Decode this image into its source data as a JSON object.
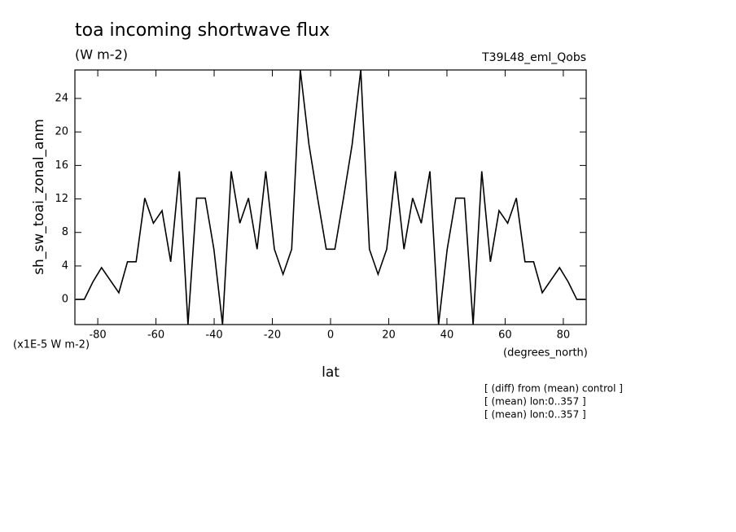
{
  "chart_data": {
    "type": "line",
    "title": "toa incoming shortwave flux",
    "subtitle": "(W m-2)",
    "dataset": "T39L48_eml_Qobs",
    "xlabel": "lat",
    "xunits": "(degrees_north)",
    "ylabel": "sh_sw_toai_zonal_anm",
    "yunits": "(x1E-5 W m-2)",
    "notes": [
      "[ (diff) from (mean) control ]",
      "[ (mean) lon:0..357 ]",
      "[ (mean) lon:0..357 ]"
    ],
    "x": [
      -87.61,
      -84.64,
      -81.67,
      -78.7,
      -75.73,
      -72.76,
      -69.79,
      -66.82,
      -63.85,
      -60.88,
      -57.91,
      -54.94,
      -51.97,
      -49,
      -46.03,
      -43.06,
      -40.09,
      -37.12,
      -34.15,
      -31.18,
      -28.21,
      -25.24,
      -22.27,
      -19.3,
      -16.33,
      -13.36,
      -10.39,
      -7.42,
      -4.45,
      -1.48,
      1.48,
      4.45,
      7.42,
      10.39,
      13.36,
      16.33,
      19.3,
      22.27,
      25.24,
      28.21,
      31.18,
      34.15,
      37.12,
      40.09,
      43.06,
      46.03,
      49,
      51.97,
      54.94,
      57.91,
      60.88,
      63.85,
      66.82,
      69.79,
      72.76,
      75.73,
      78.7,
      81.67,
      84.64,
      87.61
    ],
    "series": [
      {
        "color": "#000000",
        "values": [
          0,
          0,
          2.1,
          3.8,
          2.3,
          0.8,
          4.5,
          4.5,
          12.1,
          9.1,
          10.6,
          4.5,
          15.3,
          -3,
          12.1,
          12.1,
          6,
          -3,
          15.3,
          9.1,
          12.1,
          6,
          15.3,
          6,
          3,
          6,
          27.4,
          18.5,
          12.1,
          6,
          6,
          12.1,
          18.5,
          27.4,
          6,
          3,
          6,
          15.3,
          6,
          12.1,
          9.1,
          15.3,
          -3,
          6,
          12.1,
          12.1,
          -3,
          15.3,
          4.5,
          10.6,
          9.1,
          12.1,
          4.5,
          4.5,
          0.8,
          2.3,
          3.8,
          2.1,
          0,
          0
        ]
      }
    ],
    "xlim": [
      -87.86,
      87.86
    ],
    "xticks": [
      -80,
      -60,
      -40,
      -20,
      0,
      20,
      40,
      60,
      80
    ],
    "ylim": [
      -3.0,
      27.4
    ],
    "yticks": [
      0,
      4,
      8,
      12,
      16,
      20,
      24
    ]
  }
}
